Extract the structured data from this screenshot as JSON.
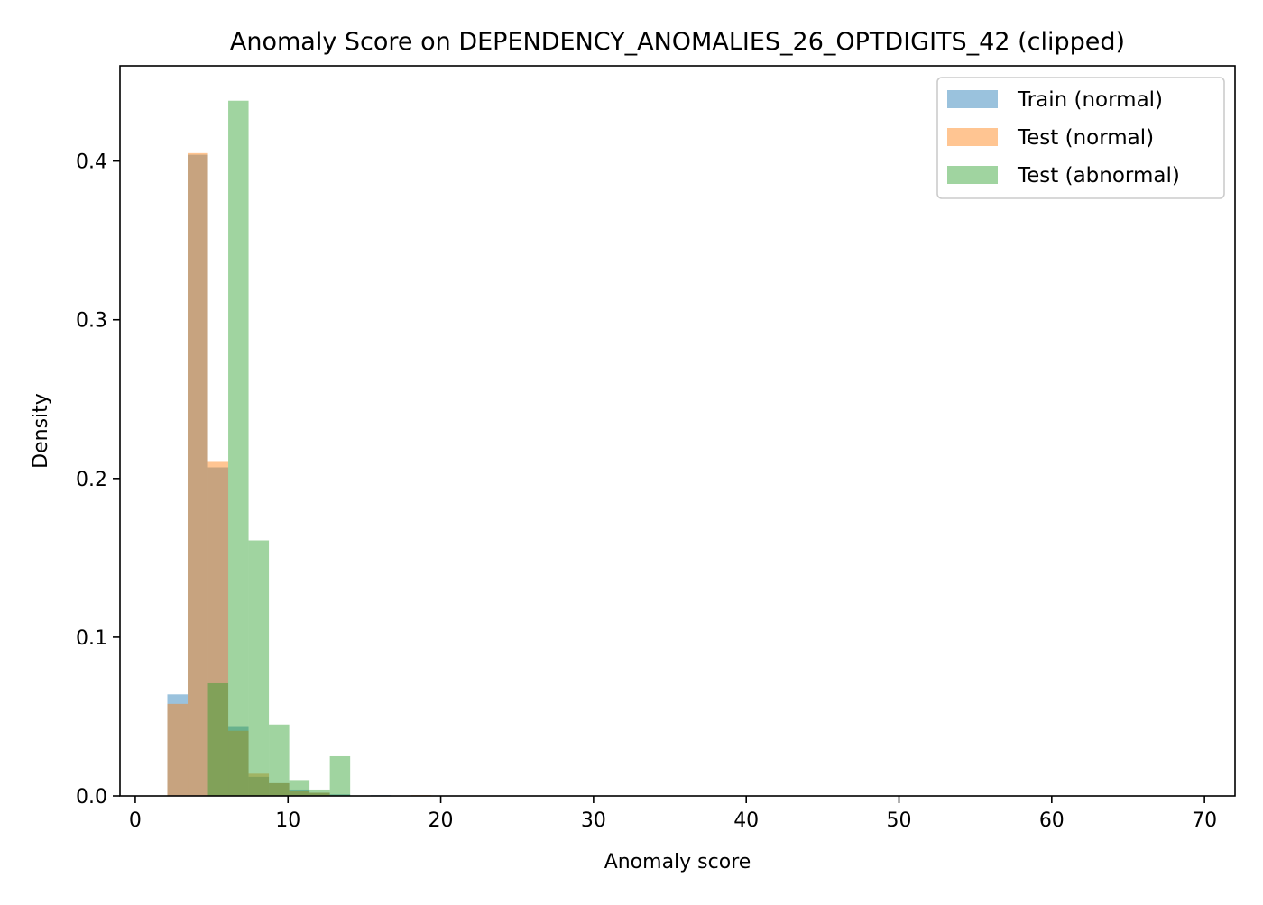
{
  "chart_data": {
    "type": "bar",
    "title": "Anomaly Score on DEPENDENCY_ANOMALIES_26_OPTDIGITS_42 (clipped)",
    "xlabel": "Anomaly score",
    "ylabel": "Density",
    "xlim": [
      -1,
      72
    ],
    "ylim": [
      0,
      0.46
    ],
    "x_ticks": [
      0,
      10,
      20,
      30,
      40,
      50,
      60,
      70
    ],
    "x_tick_labels": [
      "0",
      "10",
      "20",
      "30",
      "40",
      "50",
      "60",
      "70"
    ],
    "y_ticks": [
      0.0,
      0.1,
      0.2,
      0.3,
      0.4
    ],
    "y_tick_labels": [
      "0.0",
      "0.1",
      "0.2",
      "0.3",
      "0.4"
    ],
    "grid": false,
    "legend_position": "top-right",
    "bin_edges": [
      2.1,
      3.43,
      4.76,
      6.09,
      7.42,
      8.75,
      10.08,
      11.41,
      12.74,
      14.07,
      15.4,
      16.73,
      18.06,
      19.39
    ],
    "series": [
      {
        "name": "Train (normal)",
        "color": "#1f77b4",
        "opacity": 0.45,
        "values": [
          0.064,
          0.404,
          0.207,
          0.044,
          0.012,
          0.008,
          0.004,
          0.002,
          0.001,
          0.0,
          0.0005,
          0.0,
          0.0
        ]
      },
      {
        "name": "Test (normal)",
        "color": "#ff7f0e",
        "opacity": 0.45,
        "values": [
          0.058,
          0.405,
          0.211,
          0.041,
          0.014,
          0.008,
          0.003,
          0.002,
          0.0,
          0.0,
          0.0,
          0.0,
          0.0005
        ]
      },
      {
        "name": "Test (abnormal)",
        "color": "#2ca02c",
        "opacity": 0.45,
        "values": [
          0.0,
          0.0,
          0.071,
          0.438,
          0.161,
          0.045,
          0.01,
          0.004,
          0.025,
          0.0,
          0.0,
          0.0,
          0.0
        ]
      }
    ]
  }
}
